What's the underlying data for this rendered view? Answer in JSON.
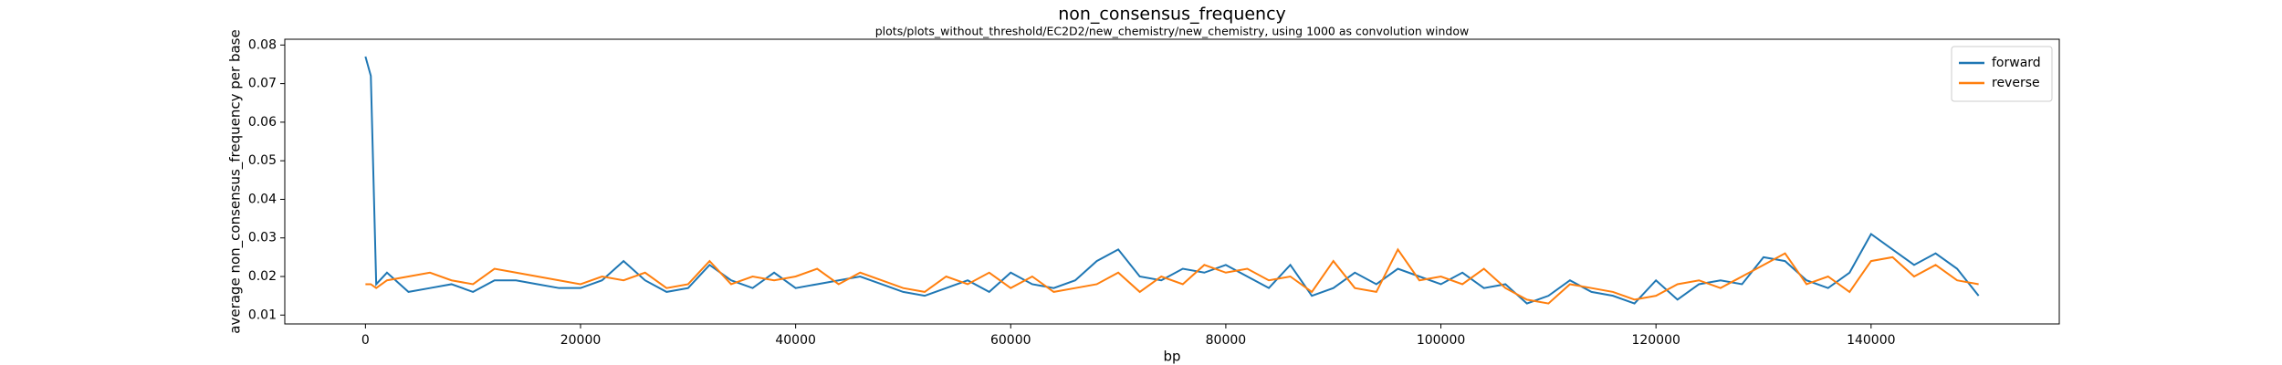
{
  "chart_data": {
    "type": "line",
    "title": "non_consensus_frequency",
    "subtitle": "plots/plots_without_threshold/EC2D2/new_chemistry/new_chemistry, using 1000 as convolution window",
    "x_label": "bp",
    "y_label": "average non_consensus_frequency per base",
    "x": [
      0,
      500,
      1000,
      2000,
      4000,
      6000,
      8000,
      10000,
      12000,
      14000,
      16000,
      18000,
      20000,
      22000,
      24000,
      26000,
      28000,
      30000,
      32000,
      34000,
      36000,
      38000,
      40000,
      42000,
      44000,
      46000,
      48000,
      50000,
      52000,
      54000,
      56000,
      58000,
      60000,
      62000,
      64000,
      66000,
      68000,
      70000,
      72000,
      74000,
      76000,
      78000,
      80000,
      82000,
      84000,
      86000,
      88000,
      90000,
      92000,
      94000,
      96000,
      98000,
      100000,
      102000,
      104000,
      106000,
      108000,
      110000,
      112000,
      114000,
      116000,
      118000,
      120000,
      122000,
      124000,
      126000,
      128000,
      130000,
      132000,
      134000,
      136000,
      138000,
      140000,
      142000,
      144000,
      146000,
      148000,
      150000
    ],
    "series": [
      {
        "name": "forward",
        "color": "#1f77b4",
        "values": [
          0.077,
          0.072,
          0.018,
          0.021,
          0.016,
          0.017,
          0.018,
          0.016,
          0.019,
          0.019,
          0.018,
          0.017,
          0.017,
          0.019,
          0.024,
          0.019,
          0.016,
          0.017,
          0.023,
          0.019,
          0.017,
          0.021,
          0.017,
          0.018,
          0.019,
          0.02,
          0.018,
          0.016,
          0.015,
          0.017,
          0.019,
          0.016,
          0.021,
          0.018,
          0.017,
          0.019,
          0.024,
          0.027,
          0.02,
          0.019,
          0.022,
          0.021,
          0.023,
          0.02,
          0.017,
          0.023,
          0.015,
          0.017,
          0.021,
          0.018,
          0.022,
          0.02,
          0.018,
          0.021,
          0.017,
          0.018,
          0.013,
          0.015,
          0.019,
          0.016,
          0.015,
          0.013,
          0.019,
          0.014,
          0.018,
          0.019,
          0.018,
          0.025,
          0.024,
          0.019,
          0.017,
          0.021,
          0.031,
          0.027,
          0.023,
          0.026,
          0.022,
          0.015
        ]
      },
      {
        "name": "reverse",
        "color": "#ff7f0e",
        "values": [
          0.018,
          0.018,
          0.017,
          0.019,
          0.02,
          0.021,
          0.019,
          0.018,
          0.022,
          0.021,
          0.02,
          0.019,
          0.018,
          0.02,
          0.019,
          0.021,
          0.017,
          0.018,
          0.024,
          0.018,
          0.02,
          0.019,
          0.02,
          0.022,
          0.018,
          0.021,
          0.019,
          0.017,
          0.016,
          0.02,
          0.018,
          0.021,
          0.017,
          0.02,
          0.016,
          0.017,
          0.018,
          0.021,
          0.016,
          0.02,
          0.018,
          0.023,
          0.021,
          0.022,
          0.019,
          0.02,
          0.016,
          0.024,
          0.017,
          0.016,
          0.027,
          0.019,
          0.02,
          0.018,
          0.022,
          0.017,
          0.014,
          0.013,
          0.018,
          0.017,
          0.016,
          0.014,
          0.015,
          0.018,
          0.019,
          0.017,
          0.02,
          0.023,
          0.026,
          0.018,
          0.02,
          0.016,
          0.024,
          0.025,
          0.02,
          0.023,
          0.019,
          0.018
        ]
      }
    ],
    "xlim": [
      -7500,
      157500
    ],
    "ylim": [
      0.0077,
      0.0815
    ],
    "xticks": [
      0,
      20000,
      40000,
      60000,
      80000,
      100000,
      120000,
      140000
    ],
    "yticks": [
      0.01,
      0.02,
      0.03,
      0.04,
      0.05,
      0.06,
      0.07,
      0.08
    ],
    "legend": "upper right"
  }
}
